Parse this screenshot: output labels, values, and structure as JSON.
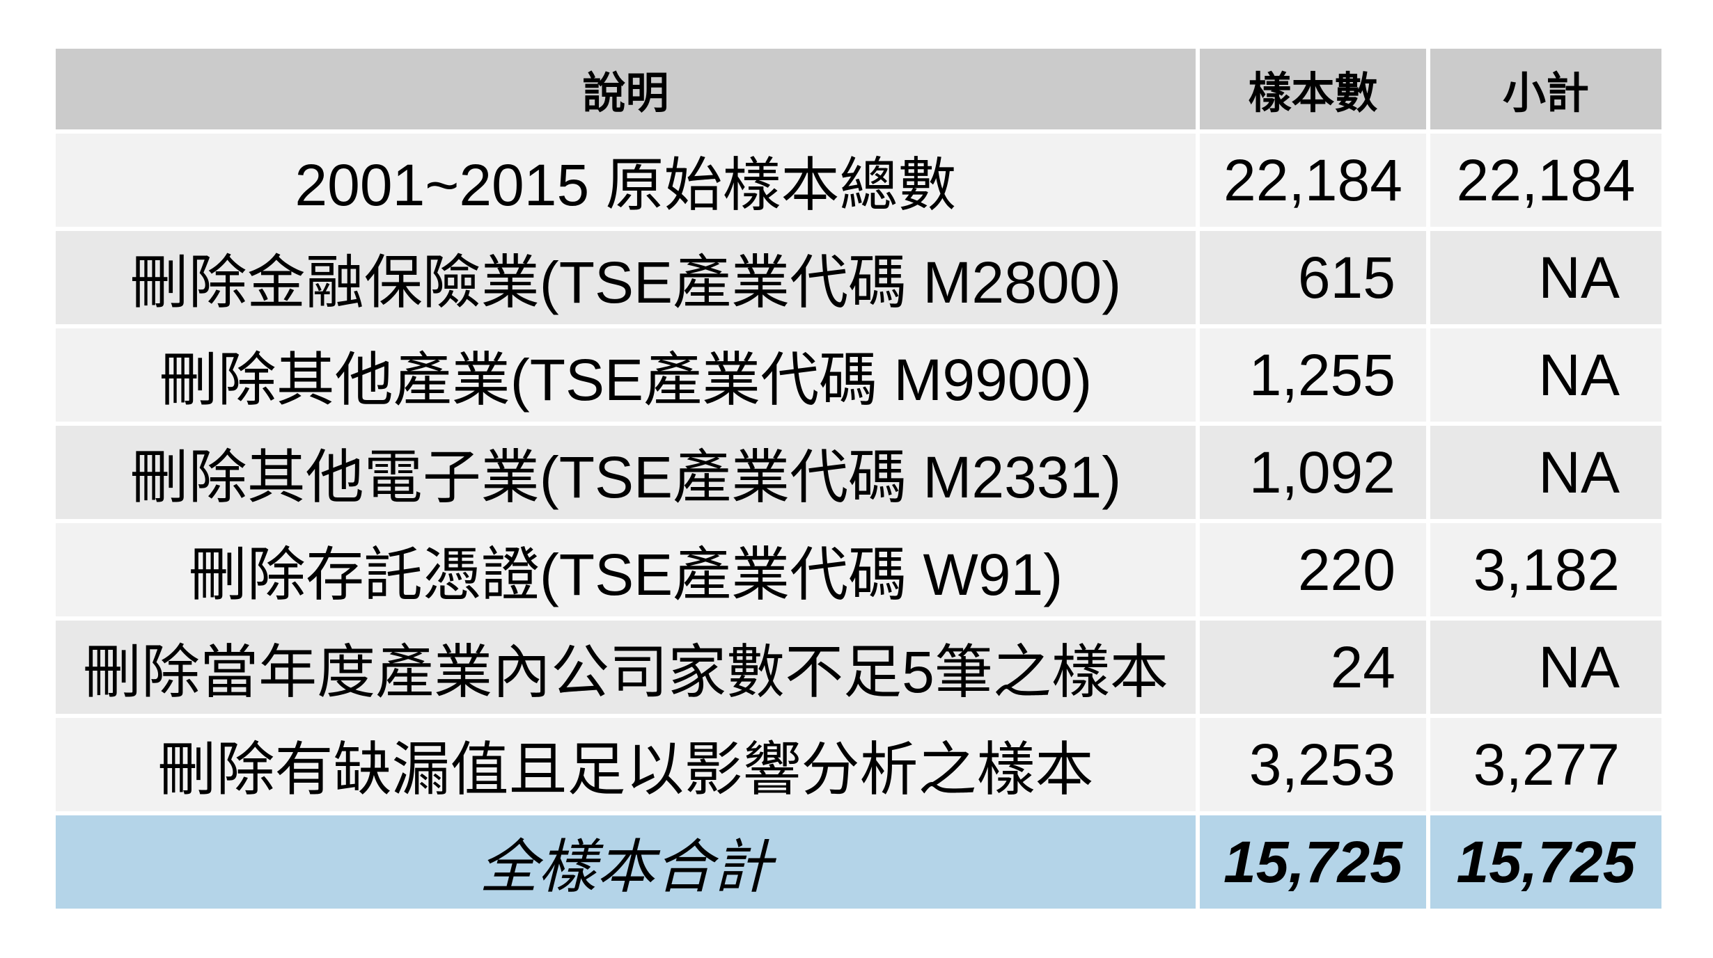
{
  "table": {
    "headers": {
      "description": "說明",
      "sample_count": "樣本數",
      "subtotal": "小計"
    },
    "rows": [
      {
        "description": "2001~2015 原始樣本總數",
        "sample_count": "22,184",
        "subtotal": "22,184"
      },
      {
        "description": "刪除金融保險業(TSE產業代碼 M2800)",
        "sample_count": "615",
        "subtotal": "NA"
      },
      {
        "description": "刪除其他產業(TSE產業代碼 M9900)",
        "sample_count": "1,255",
        "subtotal": "NA"
      },
      {
        "description": "刪除其他電子業(TSE產業代碼 M2331)",
        "sample_count": "1,092",
        "subtotal": "NA"
      },
      {
        "description": "刪除存託憑證(TSE產業代碼 W91)",
        "sample_count": "220",
        "subtotal": "3,182"
      },
      {
        "description": "刪除當年度產業內公司家數不足5筆之樣本",
        "sample_count": "24",
        "subtotal": "NA"
      },
      {
        "description": "刪除有缺漏值且足以影響分析之樣本",
        "sample_count": "3,253",
        "subtotal": "3,277"
      }
    ],
    "total": {
      "description": "全樣本合計",
      "sample_count": "15,725",
      "subtotal": "15,725"
    }
  },
  "colors": {
    "header_bg": "#cbcbcb",
    "row_light": "#f2f2f2",
    "row_dark": "#e8e8e8",
    "total_bg": "#b4d4e8"
  }
}
